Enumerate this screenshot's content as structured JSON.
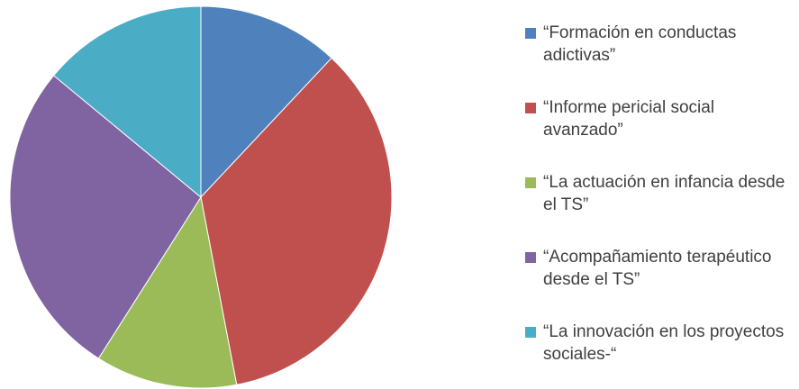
{
  "chart_data": {
    "type": "pie",
    "categories": [
      "“Formación en conductas adictivas”",
      "“Informe pericial social avanzado”",
      "“La actuación en infancia desde el TS”",
      "“Acompañamiento terapéutico desde el TS”",
      "“La innovación en los proyectos sociales-“"
    ],
    "values": [
      12,
      35,
      12,
      27,
      14
    ],
    "colors": [
      "#4f81bd",
      "#c0504d",
      "#9bbb59",
      "#8064a2",
      "#4bacc6"
    ]
  }
}
